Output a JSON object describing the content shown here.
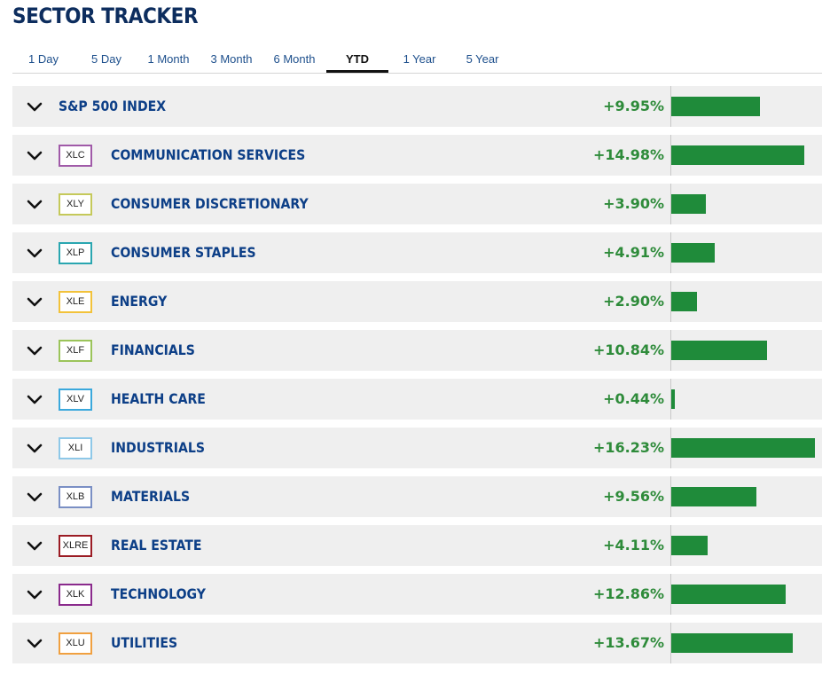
{
  "title": "SECTOR TRACKER",
  "tabs": [
    {
      "label": "1 Day",
      "active": false
    },
    {
      "label": "5 Day",
      "active": false
    },
    {
      "label": "1 Month",
      "active": false
    },
    {
      "label": "3 Month",
      "active": false
    },
    {
      "label": "6 Month",
      "active": false
    },
    {
      "label": "YTD",
      "active": true
    },
    {
      "label": "1 Year",
      "active": false
    },
    {
      "label": "5 Year",
      "active": false
    }
  ],
  "colors": {
    "title": "#0d2d5e",
    "sector_name": "#0d3f87",
    "positive": "#2e8b3a",
    "bar": "#1f8b3a",
    "row_bg": "#efefef"
  },
  "icons": {
    "expand": "chevron-down-icon"
  },
  "bar_scale_max_pct": 17,
  "rows": [
    {
      "ticker": "",
      "name": "S&P 500 INDEX",
      "change": "+9.95%",
      "value": 9.95,
      "badge_color": ""
    },
    {
      "ticker": "XLC",
      "name": "COMMUNICATION SERVICES",
      "change": "+14.98%",
      "value": 14.98,
      "badge_color": "#a05aa8"
    },
    {
      "ticker": "XLY",
      "name": "CONSUMER DISCRETIONARY",
      "change": "+3.90%",
      "value": 3.9,
      "badge_color": "#c5c95a"
    },
    {
      "ticker": "XLP",
      "name": "CONSUMER STAPLES",
      "change": "+4.91%",
      "value": 4.91,
      "badge_color": "#2aa6b0"
    },
    {
      "ticker": "XLE",
      "name": "ENERGY",
      "change": "+2.90%",
      "value": 2.9,
      "badge_color": "#f2c23a"
    },
    {
      "ticker": "XLF",
      "name": "FINANCIALS",
      "change": "+10.84%",
      "value": 10.84,
      "badge_color": "#9bc45a"
    },
    {
      "ticker": "XLV",
      "name": "HEALTH CARE",
      "change": "+0.44%",
      "value": 0.44,
      "badge_color": "#3aa8dc"
    },
    {
      "ticker": "XLI",
      "name": "INDUSTRIALS",
      "change": "+16.23%",
      "value": 16.23,
      "badge_color": "#8ec8e8"
    },
    {
      "ticker": "XLB",
      "name": "MATERIALS",
      "change": "+9.56%",
      "value": 9.56,
      "badge_color": "#7a8fc4"
    },
    {
      "ticker": "XLRE",
      "name": "REAL ESTATE",
      "change": "+4.11%",
      "value": 4.11,
      "badge_color": "#9b1c24"
    },
    {
      "ticker": "XLK",
      "name": "TECHNOLOGY",
      "change": "+12.86%",
      "value": 12.86,
      "badge_color": "#8a2a8c"
    },
    {
      "ticker": "XLU",
      "name": "UTILITIES",
      "change": "+13.67%",
      "value": 13.67,
      "badge_color": "#f0a040"
    }
  ]
}
